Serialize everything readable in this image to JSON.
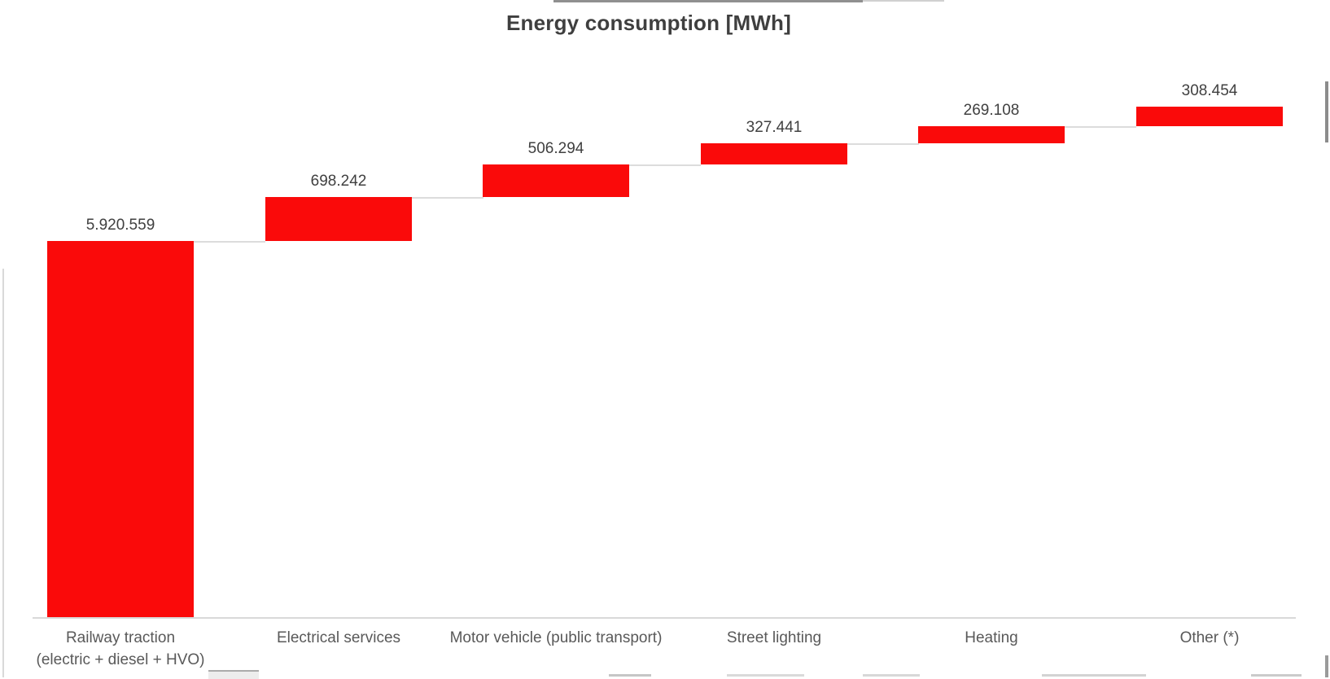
{
  "chart_data": {
    "type": "bar",
    "subtype": "waterfall",
    "title": "Energy consumption [MWh]",
    "categories": [
      "Railway traction\n(electric + diesel + HVO)",
      "Electrical services",
      "Motor vehicle (public transport)",
      "Street lighting",
      "Heating",
      "Other (*)"
    ],
    "values": [
      5920559,
      698242,
      506294,
      327441,
      269108,
      308454
    ],
    "value_labels": [
      "5.920.559",
      "698.242",
      "506.294",
      "327.441",
      "269.108",
      "308.454"
    ],
    "bar_color": "#fa0a0a",
    "title_color": "#3f3f3f",
    "value_label_color": "#404040",
    "category_color": "#595959",
    "connector_color": "#dcdcdc",
    "axis_line_color": "#d9d9d9",
    "legend": "none",
    "gridlines": false,
    "y_axis_visible": false
  }
}
